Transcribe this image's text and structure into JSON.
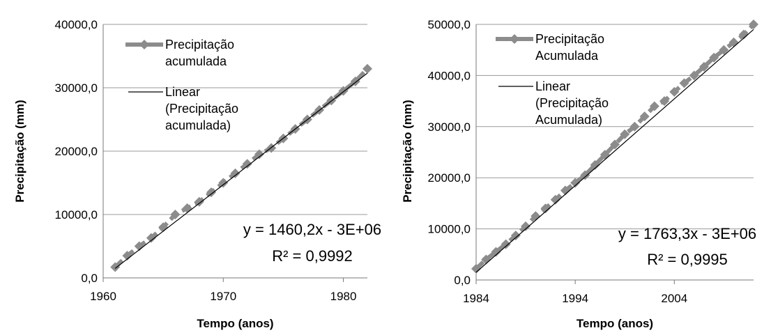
{
  "chart_data": [
    {
      "type": "line",
      "xlabel": "Tempo (anos)",
      "ylabel": "Precipitação (mm)",
      "xlim": [
        1960,
        1982
      ],
      "ylim": [
        0,
        40000
      ],
      "xticks": [
        1960,
        1970,
        1980
      ],
      "xtick_labels": [
        "1960",
        "1970",
        "1980"
      ],
      "yticks": [
        0,
        10000,
        20000,
        30000,
        40000
      ],
      "ytick_labels": [
        "0,0",
        "10000,0",
        "20000,0",
        "30000,0",
        "40000,0"
      ],
      "grid": "horizontal",
      "legend_position": "top-left",
      "series": [
        {
          "name": "Precipitação acumulada",
          "legend_lines": [
            "Precipitação",
            "acumulada"
          ],
          "color": "#8c8c8c",
          "marker": "diamond",
          "x": [
            1961,
            1962,
            1963,
            1964,
            1965,
            1966,
            1967,
            1968,
            1969,
            1970,
            1971,
            1972,
            1973,
            1974,
            1975,
            1976,
            1977,
            1978,
            1979,
            1980,
            1981,
            1982
          ],
          "values": [
            1700,
            3500,
            5000,
            6300,
            8000,
            10000,
            11000,
            12000,
            13500,
            15000,
            16500,
            18000,
            19500,
            20500,
            22000,
            23500,
            25000,
            26500,
            28000,
            29500,
            31000,
            33000
          ]
        },
        {
          "name": "Linear (Precipitação acumulada)",
          "legend_lines": [
            "Linear",
            "(Precipitação",
            "acumulada)"
          ],
          "color": "#000000",
          "type": "trendline",
          "x": [
            1961,
            1982
          ],
          "values": [
            1500,
            32300
          ]
        }
      ],
      "annotations": [
        "y = 1460,2x - 3E+06",
        "R² = 0,9992"
      ]
    },
    {
      "type": "line",
      "xlabel": "Tempo (anos)",
      "ylabel": "Precipitação (mm)",
      "xlim": [
        1984,
        2012
      ],
      "ylim": [
        0,
        50000
      ],
      "xticks": [
        1984,
        1994,
        2004
      ],
      "xtick_labels": [
        "1984",
        "1994",
        "2004"
      ],
      "yticks": [
        0,
        10000,
        20000,
        30000,
        40000,
        50000
      ],
      "ytick_labels": [
        "0,0",
        "10000,0",
        "20000,0",
        "30000,0",
        "40000,0",
        "50000,0"
      ],
      "grid": "horizontal",
      "legend_position": "top-left",
      "series": [
        {
          "name": "Precipitação Acumulada",
          "legend_lines": [
            "Precipitação",
            "Acumulada"
          ],
          "color": "#8c8c8c",
          "marker": "diamond",
          "x": [
            1984,
            1985,
            1986,
            1987,
            1988,
            1989,
            1990,
            1991,
            1992,
            1993,
            1994,
            1995,
            1996,
            1997,
            1998,
            1999,
            2000,
            2001,
            2002,
            2003,
            2004,
            2005,
            2006,
            2007,
            2008,
            2009,
            2010,
            2011,
            2012
          ],
          "values": [
            2200,
            4000,
            5500,
            7000,
            8700,
            10500,
            12500,
            14000,
            15700,
            17500,
            19000,
            20500,
            22500,
            24500,
            26500,
            28500,
            30000,
            32000,
            34000,
            35000,
            36800,
            38500,
            40000,
            41700,
            43500,
            45000,
            46500,
            48000,
            50000
          ]
        },
        {
          "name": "Linear (Precipitação Acumulada)",
          "legend_lines": [
            "Linear",
            "(Precipitação",
            "Acumulada)"
          ],
          "color": "#000000",
          "type": "trendline",
          "x": [
            1984,
            2012
          ],
          "values": [
            1500,
            49000
          ]
        }
      ],
      "annotations": [
        "y = 1763,3x - 3E+06",
        "R² = 0,9995"
      ]
    }
  ]
}
